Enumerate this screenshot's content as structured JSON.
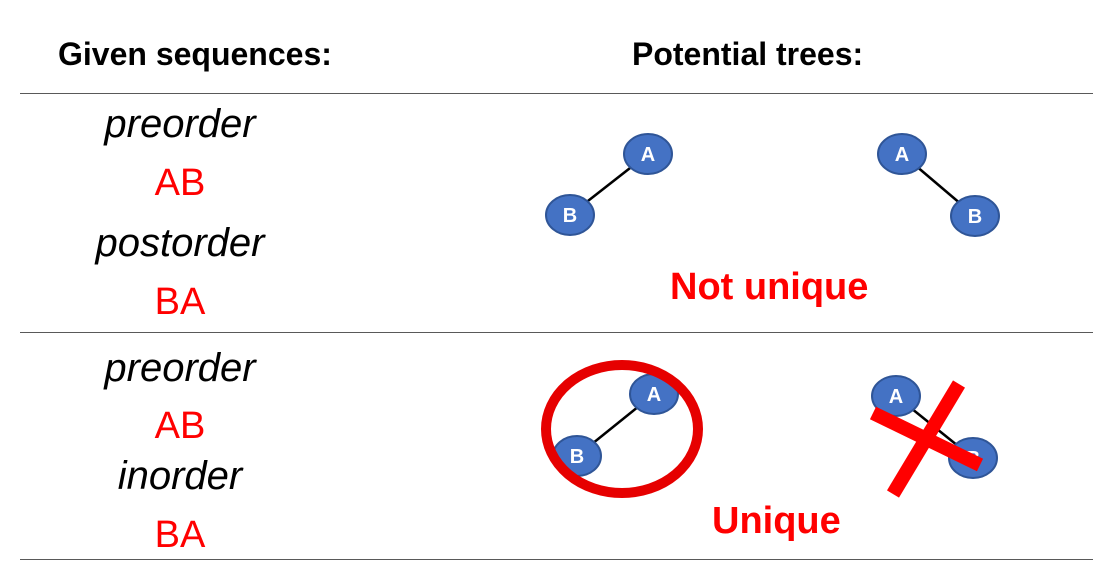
{
  "headers": {
    "given": "Given sequences:",
    "trees": "Potential trees:"
  },
  "sections": [
    {
      "seq1_label": "preorder",
      "seq1_value": "AB",
      "seq2_label": "postorder",
      "seq2_value": "BA",
      "verdict": "Not unique",
      "trees": [
        {
          "root": "A",
          "child": "B",
          "child_side": "left"
        },
        {
          "root": "A",
          "child": "B",
          "child_side": "right"
        }
      ]
    },
    {
      "seq1_label": "preorder",
      "seq1_value": "AB",
      "seq2_label": "inorder",
      "seq2_value": "BA",
      "verdict": "Unique",
      "trees": [
        {
          "root": "A",
          "child": "B",
          "child_side": "left",
          "mark": "circled-valid"
        },
        {
          "root": "A",
          "child": "B",
          "child_side": "right",
          "mark": "crossed-out-invalid"
        }
      ]
    }
  ],
  "colors": {
    "node_fill": "#4472c4",
    "node_stroke": "#2f5597",
    "accent_red": "#ff0000",
    "rule": "#595959"
  }
}
